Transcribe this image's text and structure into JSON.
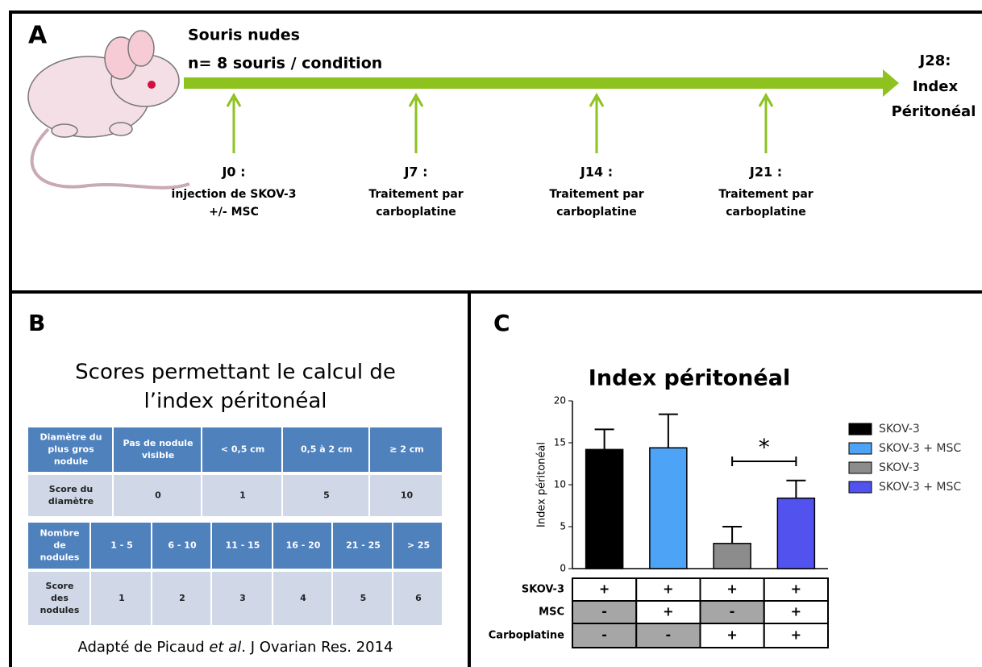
{
  "panel_a": {
    "label": "A",
    "title": "Souris nudes",
    "subtitle": "n= 8 souris / condition",
    "end_label": [
      "J28:",
      "Index",
      "Péritonéal"
    ],
    "steps": [
      {
        "day": "J0 :",
        "lines": [
          "injection de SKOV-3",
          "+/- MSC"
        ]
      },
      {
        "day": "J7 :",
        "lines": [
          "Traitement par",
          "carboplatine"
        ]
      },
      {
        "day": "J14 :",
        "lines": [
          "Traitement par",
          "carboplatine"
        ]
      },
      {
        "day": "J21 :",
        "lines": [
          "Traitement par",
          "carboplatine"
        ]
      }
    ]
  },
  "panel_b": {
    "label": "B",
    "title": [
      "Scores permettant le calcul de",
      "l’index péritonéal"
    ],
    "table1": {
      "rows": [
        [
          [
            "Diamètre du",
            "plus gros",
            "nodule"
          ],
          [
            "Pas de nodule",
            "visible"
          ],
          [
            "< 0,5 cm"
          ],
          [
            "0,5 à 2 cm"
          ],
          [
            "≥ 2 cm"
          ]
        ],
        [
          [
            "Score du",
            "diamètre"
          ],
          [
            "0"
          ],
          [
            "1"
          ],
          [
            "5"
          ],
          [
            "10"
          ]
        ]
      ]
    },
    "table2": {
      "rows": [
        [
          [
            "Nombre",
            "de",
            "nodules"
          ],
          [
            "1 - 5"
          ],
          [
            "6 - 10"
          ],
          [
            "11 - 15"
          ],
          [
            "16 - 20"
          ],
          [
            "21 - 25"
          ],
          [
            "> 25"
          ]
        ],
        [
          [
            "Score",
            "des",
            "nodules"
          ],
          [
            "1"
          ],
          [
            "2"
          ],
          [
            "3"
          ],
          [
            "4"
          ],
          [
            "5"
          ],
          [
            "6"
          ]
        ]
      ]
    },
    "source": [
      "Adapté de Picaud ",
      "et al",
      ". J Ovarian Res. 2014"
    ]
  },
  "chart_data": {
    "type": "bar",
    "panel_label": "C",
    "title": "Index péritonéal",
    "y_label": "Index péritonéal",
    "categories": [
      "SKOV-3",
      "SKOV-3 + MSC",
      "SKOV-3",
      "SKOV-3 + MSC"
    ],
    "values": [
      14.2,
      14.4,
      3,
      8.4
    ],
    "errors": [
      2.4,
      4.0,
      2.0,
      2.1
    ],
    "colors": [
      "#000000",
      "#4da3f5",
      "#8c8c8c",
      "#5252ee"
    ],
    "ylim": [
      0,
      20
    ],
    "yticks": [
      0,
      5,
      10,
      15,
      20
    ],
    "annotation": "*",
    "conditions": [
      {
        "name": "SKOV-3",
        "values": [
          "+",
          "+",
          "+",
          "+"
        ]
      },
      {
        "name": "MSC",
        "values": [
          "-",
          "+",
          "-",
          "+"
        ]
      },
      {
        "name": "Carboplatine",
        "values": [
          "-",
          "-",
          "+",
          "+"
        ]
      }
    ]
  }
}
